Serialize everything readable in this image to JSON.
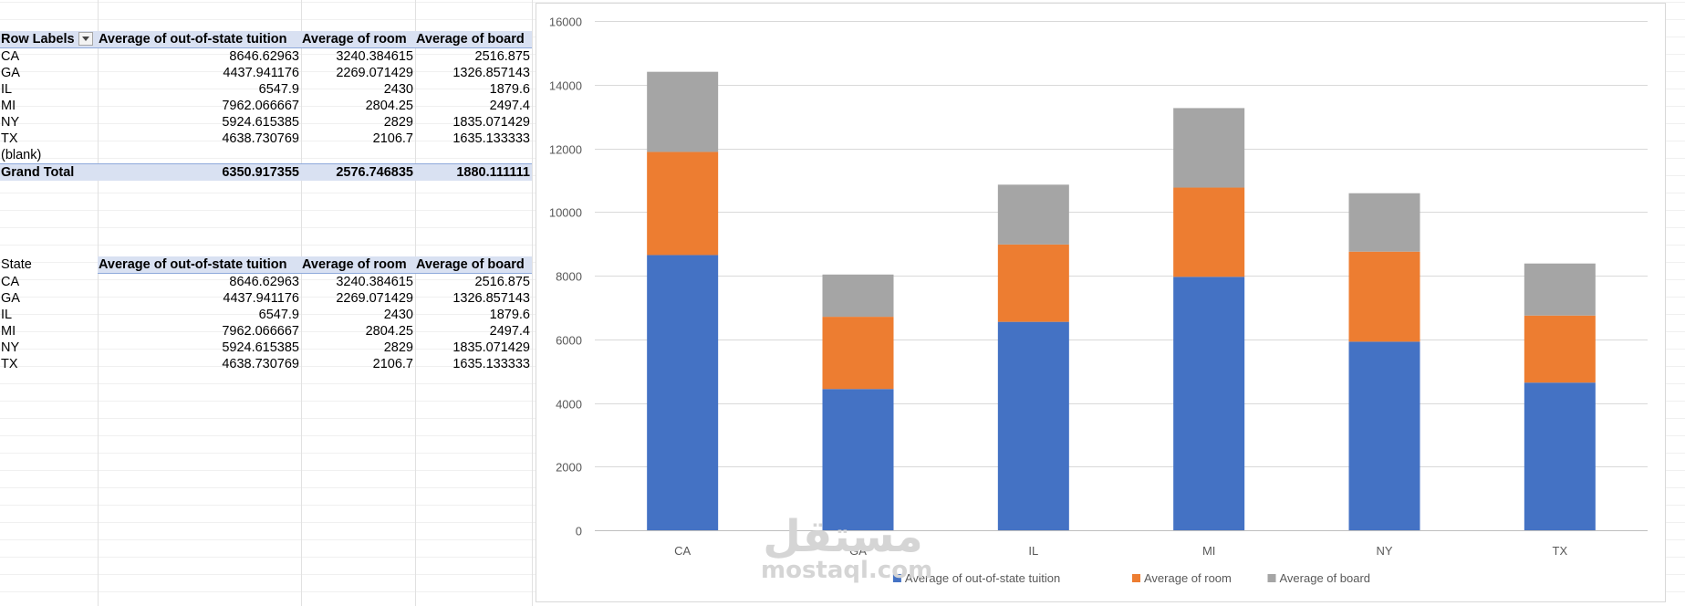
{
  "pivot": {
    "header": {
      "row_labels": "Row Labels",
      "col1": "Average of out-of-state tuition",
      "col2": "Average of room",
      "col3": "Average of board"
    },
    "rows": [
      {
        "label": "CA",
        "tuition": "8646.62963",
        "room": "3240.384615",
        "board": "2516.875"
      },
      {
        "label": "GA",
        "tuition": "4437.941176",
        "room": "2269.071429",
        "board": "1326.857143"
      },
      {
        "label": "IL",
        "tuition": "6547.9",
        "room": "2430",
        "board": "1879.6"
      },
      {
        "label": "MI",
        "tuition": "7962.066667",
        "room": "2804.25",
        "board": "2497.4"
      },
      {
        "label": "NY",
        "tuition": "5924.615385",
        "room": "2829",
        "board": "1835.071429"
      },
      {
        "label": "TX",
        "tuition": "4638.730769",
        "room": "2106.7",
        "board": "1635.133333"
      },
      {
        "label": "(blank)",
        "tuition": "",
        "room": "",
        "board": ""
      }
    ],
    "total": {
      "label": "Grand Total",
      "tuition": "6350.917355",
      "room": "2576.746835",
      "board": "1880.111111"
    }
  },
  "summary": {
    "header": {
      "state": "State",
      "col1": "Average of out-of-state tuition",
      "col2": "Average of room",
      "col3": "Average of board"
    },
    "rows": [
      {
        "label": "CA",
        "tuition": "8646.62963",
        "room": "3240.384615",
        "board": "2516.875"
      },
      {
        "label": "GA",
        "tuition": "4437.941176",
        "room": "2269.071429",
        "board": "1326.857143"
      },
      {
        "label": "IL",
        "tuition": "6547.9",
        "room": "2430",
        "board": "1879.6"
      },
      {
        "label": "MI",
        "tuition": "7962.066667",
        "room": "2804.25",
        "board": "2497.4"
      },
      {
        "label": "NY",
        "tuition": "5924.615385",
        "room": "2829",
        "board": "1835.071429"
      },
      {
        "label": "TX",
        "tuition": "4638.730769",
        "room": "2106.7",
        "board": "1635.133333"
      }
    ]
  },
  "chart_data": {
    "type": "bar",
    "stacked": true,
    "categories": [
      "CA",
      "GA",
      "IL",
      "MI",
      "NY",
      "TX"
    ],
    "series": [
      {
        "name": "Average of out-of-state tuition",
        "color": "#4472c4",
        "values": [
          8646.62963,
          4437.941176,
          6547.9,
          7962.066667,
          5924.615385,
          4638.730769
        ]
      },
      {
        "name": "Average of room",
        "color": "#ed7d31",
        "values": [
          3240.384615,
          2269.071429,
          2430,
          2804.25,
          2829,
          2106.7
        ]
      },
      {
        "name": "Average of board",
        "color": "#a5a5a5",
        "values": [
          2516.875,
          1326.857143,
          1879.6,
          2497.4,
          1835.071429,
          1635.133333
        ]
      }
    ],
    "ylim": [
      0,
      16000
    ],
    "yticks": [
      0,
      2000,
      4000,
      6000,
      8000,
      10000,
      12000,
      14000,
      16000
    ],
    "grid": true,
    "legend": "bottom",
    "title": "",
    "xlabel": "",
    "ylabel": ""
  },
  "watermark": {
    "arabic": "مستقل",
    "latin": "mostaql.com"
  }
}
